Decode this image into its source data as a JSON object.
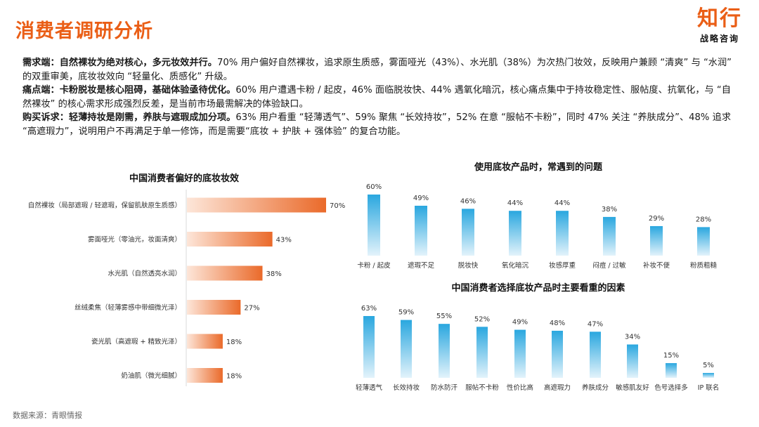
{
  "header": {
    "title": "消费者调研分析",
    "logo_main": "知行",
    "logo_sub": "战略咨询"
  },
  "summary": [
    {
      "lead": "需求端：自然裸妆为绝对核心，多元妆效并行。",
      "text": "70% 用户偏好自然裸妆，追求原生质感，雾面哑光（43%）、水光肌（38%）为次热门妆效，反映用户兼顾 “清爽” 与 “水润” 的双重审美，底妆妆效向 “轻量化、质感化” 升级。"
    },
    {
      "lead": "痛点端：卡粉脱妆是核心阻碍，基础体验亟待优化。",
      "text": "60% 用户遭遇卡粉 / 起皮，46% 面临脱妆快、44% 遇氧化暗沉，核心痛点集中于持妆稳定性、服帖度、抗氧化，与 “自然裸妆” 的核心需求形成强烈反差，是当前市场最需解决的体验缺口。"
    },
    {
      "lead": "购买诉求：轻薄持妆是刚需，养肤与遮瑕成加分项。",
      "text": "63% 用户看重 “轻薄透气”、59% 聚焦 “长效持妆”，52% 在意 “服帖不卡粉”，同时 47% 关注 “养肤成分”、48% 追求 “高遮瑕力”，说明用户不再满足于单一修饰，而是需要“底妆 + 护肤 + 强体验” 的复合功能。"
    }
  ],
  "source": "数据来源：青眼情报",
  "colors": {
    "accent": "#ea5e16",
    "hbar_dark": "#ea6a2a",
    "hbar_light": "#fde6d9",
    "vbar_dark": "#2aa7df",
    "vbar_light": "#e3f3fb"
  },
  "chart_data": [
    {
      "type": "bar",
      "orientation": "horizontal",
      "title": "中国消费者偏好的底妆妆效",
      "categories": [
        "自然裸妆（局部遮瑕 / 轻遮瑕，保留肌肤原生质感）",
        "雾面哑光（零油光，妆面清爽）",
        "水光肌（自然透亮水润）",
        "丝绒柔焦（轻薄雾感中带细微光泽）",
        "瓷光肌（高遮瑕 + 精致光泽）",
        "奶油肌（微光细腻）"
      ],
      "values": [
        70,
        43,
        38,
        27,
        18,
        18
      ],
      "value_labels": [
        "70%",
        "43%",
        "38%",
        "27%",
        "18%",
        "18%"
      ],
      "unit": "%",
      "xlim": [
        0,
        70
      ]
    },
    {
      "type": "bar",
      "orientation": "vertical",
      "title": "使用底妆产品时，常遇到的问题",
      "categories": [
        "卡粉 / 起皮",
        "遮瑕不足",
        "脱妆快",
        "氧化暗沉",
        "妆感厚重",
        "闷痘 / 过敏",
        "补妆不便",
        "粉质粗糙"
      ],
      "values": [
        60,
        49,
        46,
        44,
        44,
        38,
        29,
        28
      ],
      "value_labels": [
        "60%",
        "49%",
        "46%",
        "44%",
        "44%",
        "38%",
        "29%",
        "28%"
      ],
      "unit": "%",
      "ylim": [
        0,
        60
      ]
    },
    {
      "type": "bar",
      "orientation": "vertical",
      "title": "中国消费者选择底妆产品时主要看重的因素",
      "categories": [
        "轻薄透气",
        "长效持妆",
        "防水防汗",
        "服帖不卡粉",
        "性价比高",
        "高遮瑕力",
        "养肤成分",
        "敏感肌友好",
        "色号选择多",
        "IP 联名"
      ],
      "values": [
        63,
        59,
        55,
        52,
        49,
        48,
        47,
        34,
        15,
        5
      ],
      "value_labels": [
        "63%",
        "59%",
        "55%",
        "52%",
        "49%",
        "48%",
        "47%",
        "34%",
        "15%",
        "5%"
      ],
      "unit": "%",
      "ylim": [
        0,
        63
      ]
    }
  ]
}
